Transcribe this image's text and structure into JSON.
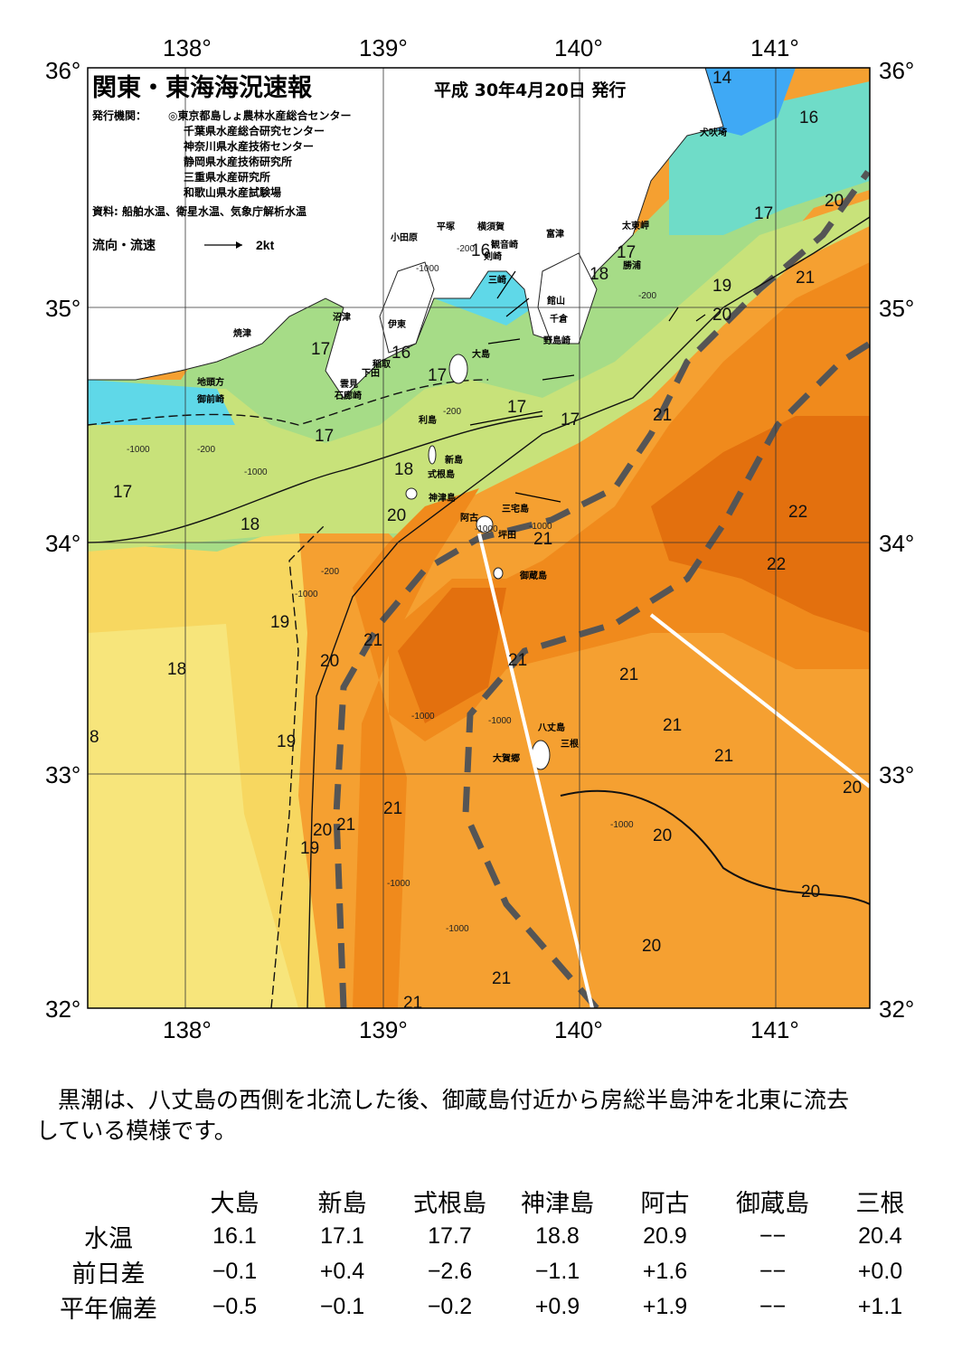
{
  "header": {
    "title": "関東・東海海況速報",
    "date": "平成 30年4月20日 発行",
    "issuer_label": "発行機関：",
    "issuers": [
      "◎東京都島しょ農林水産総合センター",
      "千葉県水産総合研究センター",
      "神奈川県水産技術センター",
      "静岡県水産技術研究所",
      "三重県水産研究所",
      "和歌山県水産試験場"
    ],
    "source": "資料: 船舶水温、衛星水温、気象庁解析水温",
    "flow_legend": "流向・流速",
    "flow_scale": "2kt"
  },
  "map": {
    "lon_labels": [
      "138°",
      "139°",
      "140°",
      "141°"
    ],
    "lat_labels": [
      "36°",
      "35°",
      "34°",
      "33°",
      "32°"
    ],
    "temperature_labels": [
      "14",
      "16",
      "17",
      "17",
      "19",
      "20",
      "21",
      "21",
      "20",
      "21",
      "22",
      "22",
      "21",
      "21",
      "21",
      "21",
      "20",
      "20",
      "20",
      "21",
      "21",
      "20",
      "19",
      "18",
      "19",
      "20",
      "21",
      "21",
      "21",
      "20",
      "18",
      "17",
      "17",
      "17",
      "16",
      "16",
      "17",
      "17",
      "18",
      "17",
      "18",
      "8",
      "19",
      "20"
    ],
    "isobath_labels": [
      "-1000",
      "-200",
      "-1000",
      "-200",
      "-200",
      "-1000",
      "-200",
      "-1000",
      "-1000",
      "-1000",
      "-1000",
      "-1000",
      "-200",
      "-1000",
      "-1000",
      "-1000"
    ],
    "place_names": [
      "小田原",
      "平塚",
      "横須賀",
      "観音崎",
      "剣崎",
      "三崎",
      "富津",
      "館山",
      "千倉",
      "野島崎",
      "太東岬",
      "勝浦",
      "犬吠埼",
      "沼津",
      "焼津",
      "伊東",
      "稲取",
      "下田",
      "雲見",
      "石廊崎",
      "地頭方",
      "御前崎",
      "大島",
      "利島",
      "新島",
      "式根島",
      "神津島",
      "三宅島",
      "阿古",
      "坪田",
      "御蔵島",
      "八丈島",
      "三根",
      "大賀郷"
    ],
    "colors": {
      "t14": "#3fa9f5",
      "t16": "#5fd8e8",
      "t17": "#9be0a0",
      "t18": "#f5e87a",
      "t19": "#f9c74f",
      "t20": "#f5a031",
      "t21": "#f08a1c",
      "t22": "#e3700e",
      "land": "#ffffff",
      "kuroshio_axis": "#555555"
    }
  },
  "summary": [
    "黒潮は、八丈島の西側を北流した後、御蔵島付近から房総半島沖を北東に流去",
    "している模様です。"
  ],
  "table": {
    "stations": [
      "大島",
      "新島",
      "式根島",
      "神津島",
      "阿古",
      "御蔵島",
      "三根"
    ],
    "rows": [
      {
        "label": "水温",
        "values": [
          "16.1",
          "17.1",
          "17.7",
          "18.8",
          "20.9",
          "−−",
          "20.4"
        ]
      },
      {
        "label": "前日差",
        "values": [
          "−0.1",
          "+0.4",
          "−2.6",
          "−1.1",
          "+1.6",
          "−−",
          "+0.0"
        ]
      },
      {
        "label": "平年偏差",
        "values": [
          "−0.5",
          "−0.1",
          "−0.2",
          "+0.9",
          "+1.9",
          "−−",
          "+1.1"
        ]
      }
    ]
  }
}
